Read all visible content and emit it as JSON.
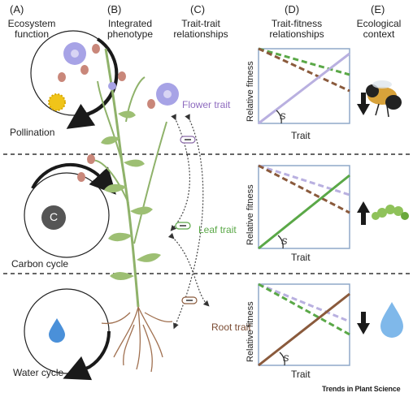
{
  "columns": [
    {
      "letter": "(A)",
      "title": "Ecosystem function"
    },
    {
      "letter": "(B)",
      "title": "Integrated phenotype"
    },
    {
      "letter": "(C)",
      "title": "Trait-trait relationships"
    },
    {
      "letter": "(D)",
      "title": "Trait-fitness relationships"
    },
    {
      "letter": "(E)",
      "title": "Ecological context"
    }
  ],
  "functions": [
    "Pollination",
    "Carbon cycle",
    "Water cycle"
  ],
  "carbon_symbol": "C",
  "traits": {
    "flower": "Flower trait",
    "leaf": "Leaf trait",
    "root": "Root trait"
  },
  "panel_axes": {
    "x": "Trait",
    "y": "Relative fitness",
    "slope": "S"
  },
  "credit": "Trends in Plant Science",
  "colors": {
    "flower": "#b9b0e0",
    "leaf": "#5aa847",
    "root": "#8a5a3c",
    "panel_border": "#8fa8c8",
    "arrow": "#1a1a1a"
  },
  "context_arrows": [
    "down",
    "up",
    "down"
  ]
}
